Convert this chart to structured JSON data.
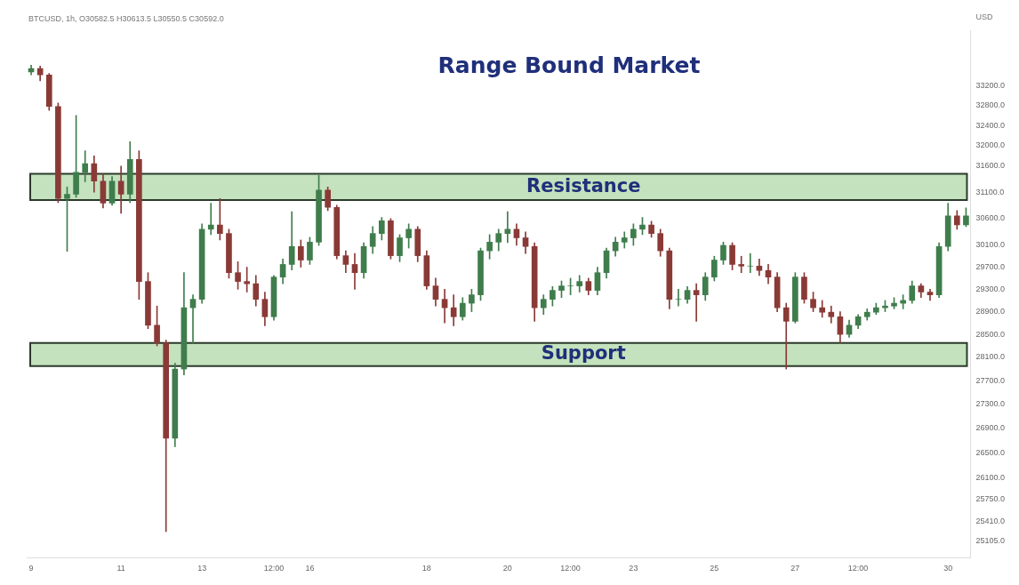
{
  "chart_data": {
    "type": "candlestick",
    "title": "Range Bound Market",
    "ylabel": "USD",
    "annotations": [
      "BTCUSD, 1h, O30582.5 H30613.5 L30550.5 C30592.0"
    ],
    "log": "y",
    "ylim": [
      24850,
      34350
    ],
    "yticks": [
      {
        "value": 25105,
        "label": "25105.0"
      },
      {
        "value": 25410,
        "label": "25410.0"
      },
      {
        "value": 25750,
        "label": "25750.0"
      },
      {
        "value": 26100,
        "label": "26100.0"
      },
      {
        "value": 26500,
        "label": "26500.0"
      },
      {
        "value": 26900,
        "label": "26900.0"
      },
      {
        "value": 27300,
        "label": "27300.0"
      },
      {
        "value": 27700,
        "label": "27700.0"
      },
      {
        "value": 28100,
        "label": "28100.0"
      },
      {
        "value": 28500,
        "label": "28500.0"
      },
      {
        "value": 28900,
        "label": "28900.0"
      },
      {
        "value": 29300,
        "label": "29300.0"
      },
      {
        "value": 29700,
        "label": "29700.0"
      },
      {
        "value": 30100,
        "label": "30100.0"
      },
      {
        "value": 30600,
        "label": "30600.0"
      },
      {
        "value": 31100,
        "label": "31100.0"
      },
      {
        "value": 31600,
        "label": "31600.0"
      },
      {
        "value": 32000,
        "label": "32000.0"
      },
      {
        "value": 32400,
        "label": "32400.0"
      },
      {
        "value": 32800,
        "label": "32800.0"
      },
      {
        "value": 33200,
        "label": "33200.0"
      }
    ],
    "bands": [
      {
        "axis": "y",
        "from": 30950,
        "to": 31450,
        "label": "Resistance",
        "color": "#c3e2bd"
      },
      {
        "axis": "y",
        "from": 27950,
        "to": 28350,
        "label": "Support",
        "color": "#c3e2bd"
      }
    ],
    "categories": [
      "9",
      null,
      null,
      null,
      null,
      null,
      null,
      null,
      null,
      null,
      "11",
      null,
      null,
      null,
      null,
      null,
      null,
      null,
      null,
      "13",
      null,
      null,
      null,
      null,
      null,
      null,
      null,
      "12:00",
      null,
      null,
      null,
      "16",
      null,
      null,
      null,
      null,
      null,
      null,
      null,
      null,
      null,
      null,
      null,
      null,
      "18",
      null,
      null,
      null,
      null,
      null,
      null,
      null,
      null,
      "20",
      null,
      null,
      null,
      null,
      null,
      null,
      "12:00",
      null,
      null,
      null,
      null,
      null,
      null,
      "23",
      null,
      null,
      null,
      null,
      null,
      null,
      null,
      null,
      "25",
      null,
      null,
      null,
      null,
      null,
      null,
      null,
      null,
      "27",
      null,
      null,
      null,
      null,
      null,
      null,
      "12:00",
      null,
      null,
      null,
      null,
      null,
      null,
      null,
      null,
      null,
      "30",
      null,
      null
    ],
    "ohlc": [
      [
        33480,
        33620,
        33420,
        33550
      ],
      [
        33550,
        33600,
        33300,
        33420
      ],
      [
        33420,
        33450,
        32700,
        32780
      ],
      [
        32780,
        32850,
        30900,
        30980
      ],
      [
        30980,
        31200,
        29990,
        31060
      ],
      [
        31060,
        32600,
        31000,
        31480
      ],
      [
        31480,
        31900,
        31300,
        31650
      ],
      [
        31650,
        31800,
        31100,
        31310
      ],
      [
        31310,
        31450,
        30800,
        30890
      ],
      [
        30890,
        31400,
        30850,
        31310
      ],
      [
        31310,
        31600,
        30700,
        31060
      ],
      [
        31060,
        32080,
        30900,
        31730
      ],
      [
        31730,
        31900,
        29120,
        29440
      ],
      [
        29440,
        29600,
        28600,
        28660
      ],
      [
        28660,
        29000,
        28300,
        28350
      ],
      [
        28350,
        28400,
        25250,
        26740
      ],
      [
        26740,
        28000,
        26600,
        27900
      ],
      [
        27900,
        29600,
        27800,
        28970
      ],
      [
        28970,
        29200,
        28350,
        29120
      ],
      [
        29120,
        30500,
        29050,
        30400
      ],
      [
        30400,
        30890,
        30300,
        30480
      ],
      [
        30480,
        30980,
        30200,
        30320
      ],
      [
        30320,
        30400,
        29500,
        29600
      ],
      [
        29600,
        29800,
        29300,
        29440
      ],
      [
        29440,
        29700,
        29250,
        29400
      ],
      [
        29400,
        29550,
        29000,
        29120
      ],
      [
        29120,
        29250,
        28650,
        28810
      ],
      [
        28810,
        29550,
        28750,
        29520
      ],
      [
        29520,
        29850,
        29400,
        29750
      ],
      [
        29750,
        30730,
        29650,
        30080
      ],
      [
        30080,
        30200,
        29700,
        29830
      ],
      [
        29830,
        30250,
        29750,
        30160
      ],
      [
        30160,
        31420,
        30100,
        31140
      ],
      [
        31140,
        31200,
        30750,
        30810
      ],
      [
        30810,
        30850,
        29850,
        29910
      ],
      [
        29910,
        30000,
        29600,
        29750
      ],
      [
        29750,
        29950,
        29300,
        29600
      ],
      [
        29600,
        30150,
        29500,
        30080
      ],
      [
        30080,
        30450,
        29950,
        30320
      ],
      [
        30320,
        30620,
        30200,
        30560
      ],
      [
        30560,
        30600,
        29850,
        29910
      ],
      [
        29910,
        30300,
        29800,
        30240
      ],
      [
        30240,
        30500,
        30050,
        30400
      ],
      [
        30400,
        30450,
        29800,
        29910
      ],
      [
        29910,
        30000,
        29300,
        29360
      ],
      [
        29360,
        29500,
        29000,
        29120
      ],
      [
        29120,
        29300,
        28700,
        28970
      ],
      [
        28970,
        29200,
        28650,
        28810
      ],
      [
        28810,
        29150,
        28750,
        29050
      ],
      [
        29050,
        29300,
        28900,
        29200
      ],
      [
        29200,
        30050,
        29100,
        30000
      ],
      [
        30000,
        30300,
        29850,
        30160
      ],
      [
        30160,
        30400,
        30000,
        30320
      ],
      [
        30320,
        30730,
        30150,
        30400
      ],
      [
        30400,
        30500,
        30100,
        30240
      ],
      [
        30240,
        30350,
        29950,
        30080
      ],
      [
        30080,
        30150,
        28730,
        28970
      ],
      [
        28970,
        29200,
        28850,
        29120
      ],
      [
        29120,
        29350,
        29000,
        29280
      ],
      [
        29280,
        29450,
        29150,
        29360
      ],
      [
        29360,
        29500,
        29200,
        29360
      ],
      [
        29360,
        29550,
        29250,
        29440
      ],
      [
        29440,
        29500,
        29200,
        29280
      ],
      [
        29280,
        29700,
        29200,
        29600
      ],
      [
        29600,
        30050,
        29500,
        30000
      ],
      [
        30000,
        30250,
        29900,
        30160
      ],
      [
        30160,
        30350,
        30050,
        30240
      ],
      [
        30240,
        30500,
        30100,
        30400
      ],
      [
        30400,
        30620,
        30300,
        30480
      ],
      [
        30480,
        30550,
        30250,
        30320
      ],
      [
        30320,
        30400,
        29900,
        30000
      ],
      [
        30000,
        30050,
        28950,
        29120
      ],
      [
        29120,
        29300,
        29000,
        29120
      ],
      [
        29120,
        29350,
        29050,
        29280
      ],
      [
        29280,
        29400,
        28730,
        29200
      ],
      [
        29200,
        29600,
        29100,
        29520
      ],
      [
        29520,
        29900,
        29450,
        29830
      ],
      [
        29830,
        30160,
        29750,
        30100
      ],
      [
        30100,
        30150,
        29650,
        29750
      ],
      [
        29750,
        29900,
        29600,
        29720
      ],
      [
        29720,
        29950,
        29600,
        29720
      ],
      [
        29720,
        29850,
        29550,
        29640
      ],
      [
        29640,
        29750,
        29400,
        29520
      ],
      [
        29520,
        29600,
        28900,
        28970
      ],
      [
        28970,
        29050,
        27900,
        28730
      ],
      [
        28730,
        29600,
        28700,
        29520
      ],
      [
        29520,
        29600,
        29050,
        29120
      ],
      [
        29120,
        29250,
        28900,
        28970
      ],
      [
        28970,
        29100,
        28800,
        28890
      ],
      [
        28890,
        29000,
        28700,
        28810
      ],
      [
        28810,
        28900,
        28350,
        28500
      ],
      [
        28500,
        28750,
        28450,
        28660
      ],
      [
        28660,
        28850,
        28600,
        28810
      ],
      [
        28810,
        28950,
        28750,
        28890
      ],
      [
        28890,
        29050,
        28850,
        28970
      ],
      [
        28970,
        29100,
        28900,
        29000
      ],
      [
        29000,
        29150,
        28950,
        29050
      ],
      [
        29050,
        29200,
        28950,
        29100
      ],
      [
        29100,
        29450,
        29050,
        29360
      ],
      [
        29360,
        29400,
        29150,
        29250
      ],
      [
        29250,
        29300,
        29100,
        29200
      ],
      [
        29200,
        30150,
        29150,
        30080
      ],
      [
        30080,
        30890,
        30000,
        30650
      ],
      [
        30650,
        30750,
        30400,
        30480
      ],
      [
        30480,
        30800,
        30450,
        30650
      ]
    ]
  }
}
